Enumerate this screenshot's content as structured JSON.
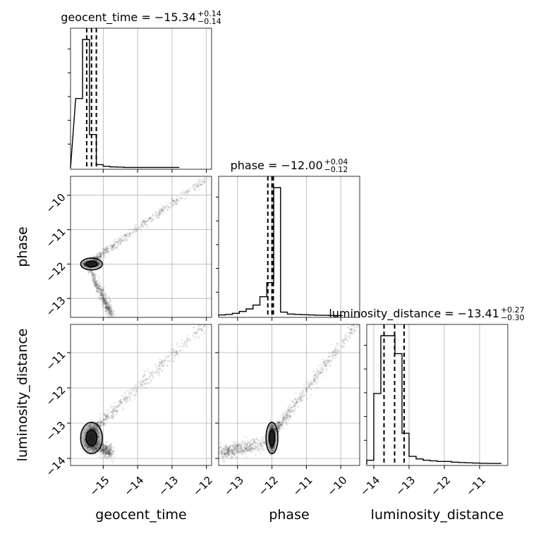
{
  "chart_data": {
    "type": "scatter",
    "kind": "corner-plot",
    "parameters": [
      "geocent_time",
      "phase",
      "luminosity_distance"
    ],
    "grid": true,
    "colors": {
      "hist": "#000000",
      "points": "#000000",
      "grid": "#b0b0b0",
      "frame": "#000000"
    },
    "titles": [
      {
        "parameter": "geocent_time",
        "label": "geocent_time = −15.34",
        "upper": "+0.14",
        "lower": "−0.14",
        "median": -15.34,
        "plus": 0.14,
        "minus": 0.14
      },
      {
        "parameter": "phase",
        "label": "phase = −12.00",
        "upper": "+0.04",
        "lower": "−0.12",
        "median": -12.0,
        "plus": 0.04,
        "minus": 0.12
      },
      {
        "parameter": "luminosity_distance",
        "label": "luminosity_distance = −13.41",
        "upper": "+0.27",
        "lower": "−0.30",
        "median": -13.41,
        "plus": 0.27,
        "minus": 0.3
      }
    ],
    "axes": {
      "geocent_time": {
        "label": "geocent_time",
        "range": [
          -15.95,
          -11.85
        ],
        "ticks": [
          -15,
          -14,
          -13,
          -12
        ],
        "tick_labels": [
          "−15",
          "−14",
          "−13",
          "−12"
        ]
      },
      "phase": {
        "label": "phase",
        "range": [
          -13.55,
          -9.45
        ],
        "ticks": [
          -13,
          -12,
          -11,
          -10
        ],
        "tick_labels": [
          "−13",
          "−12",
          "−11",
          "−10"
        ]
      },
      "luminosity_distance": {
        "label": "luminosity_distance",
        "range": [
          -14.2,
          -10.2
        ],
        "ticks": [
          -14,
          -13,
          -12,
          -11
        ],
        "tick_labels": [
          "−14",
          "−13",
          "−12",
          "−11"
        ]
      }
    },
    "histograms": {
      "geocent_time": {
        "bin_edges": [
          -15.8,
          -15.6,
          -15.4,
          -15.2,
          -15.0,
          -14.8,
          -14.6,
          -14.4,
          -14.2,
          -14.0,
          -13.8,
          -13.6,
          -13.4,
          -13.2,
          -13.0,
          -12.8
        ],
        "counts": [
          0.54,
          1.0,
          0.26,
          0.025,
          0.012,
          0.007,
          0.006,
          0.003,
          0.003,
          0.003,
          0.003,
          0.003,
          0.003,
          0.003,
          0.003
        ],
        "quantiles": [
          -15.48,
          -15.34,
          -15.2
        ]
      },
      "phase": {
        "bin_edges": [
          -13.55,
          -13.35,
          -13.15,
          -12.95,
          -12.75,
          -12.55,
          -12.35,
          -12.15,
          -11.95,
          -11.75,
          -11.55,
          -11.35,
          -11.15,
          -10.95,
          -10.75,
          -10.55,
          -10.35,
          -10.15,
          -9.95
        ],
        "counts": [
          0.008,
          0.012,
          0.02,
          0.035,
          0.055,
          0.085,
          0.15,
          0.26,
          1.0,
          0.03,
          0.015,
          0.012,
          0.01,
          0.008,
          0.006,
          0.005,
          0.004,
          0.003
        ],
        "quantiles": [
          -12.12,
          -12.0,
          -11.96
        ]
      },
      "luminosity_distance": {
        "bin_edges": [
          -14.2,
          -14.0,
          -13.8,
          -13.6,
          -13.4,
          -13.2,
          -13.0,
          -12.8,
          -12.6,
          -12.4,
          -12.2,
          -12.0,
          -11.8,
          -11.6,
          -11.4,
          -11.2,
          -11.0,
          -10.8,
          -10.6,
          -10.4
        ],
        "counts": [
          0.03,
          0.55,
          1.0,
          1.0,
          0.86,
          0.24,
          0.06,
          0.04,
          0.03,
          0.025,
          0.02,
          0.02,
          0.015,
          0.012,
          0.01,
          0.008,
          0.006,
          0.005,
          0.005
        ],
        "quantiles": [
          -13.71,
          -13.41,
          -13.14
        ]
      }
    }
  }
}
